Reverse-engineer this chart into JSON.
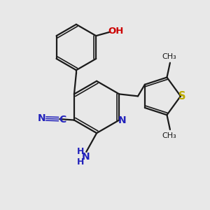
{
  "bg_color": "#e8e8e8",
  "bond_color": "#1a1a1a",
  "n_color": "#2222bb",
  "o_color": "#cc0000",
  "s_color": "#bbaa00",
  "nh2_color": "#2222bb",
  "figsize": [
    3.0,
    3.0
  ],
  "dpi": 100,
  "xlim": [
    0,
    10
  ],
  "ylim": [
    0,
    10
  ]
}
